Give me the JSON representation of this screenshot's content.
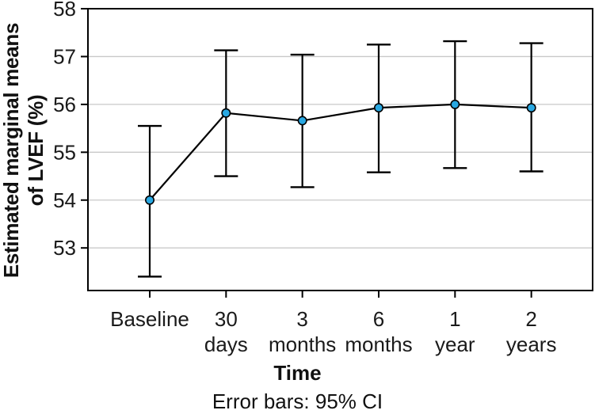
{
  "chart_data": {
    "type": "line",
    "title": "",
    "categories": [
      "Baseline",
      "30 days",
      "3 months",
      "6 months",
      "1 year",
      "2 years"
    ],
    "category_label_lines": [
      [
        "Baseline"
      ],
      [
        "30",
        "days"
      ],
      [
        "3",
        "months"
      ],
      [
        "6",
        "months"
      ],
      [
        "1",
        "year"
      ],
      [
        "2",
        "years"
      ]
    ],
    "series": [
      {
        "name": "Estimated marginal mean LVEF",
        "values": [
          54.0,
          55.82,
          55.66,
          55.93,
          56.0,
          55.93
        ],
        "ci_lower": [
          52.4,
          54.5,
          54.27,
          54.58,
          54.67,
          54.6
        ],
        "ci_upper": [
          55.55,
          57.13,
          57.04,
          57.25,
          57.32,
          57.28
        ]
      }
    ],
    "xlabel": "Time",
    "ylabel": "Estimated marginal means of LVEF (%)",
    "ylabel_lines": [
      "Estimated marginal means",
      "of LVEF (%)"
    ],
    "yticks": [
      53,
      54,
      55,
      56,
      57,
      58
    ],
    "ylim": [
      52.11,
      58
    ],
    "grid": "horizontal",
    "legend": "none",
    "caption": "Error bars: 95% CI",
    "error_bar_meaning": "95% CI",
    "colors": {
      "marker": "#29A8E2",
      "line": "#000000",
      "grid": "#c9c9c9",
      "axis": "#000000",
      "text": "#1a1a1a"
    }
  }
}
